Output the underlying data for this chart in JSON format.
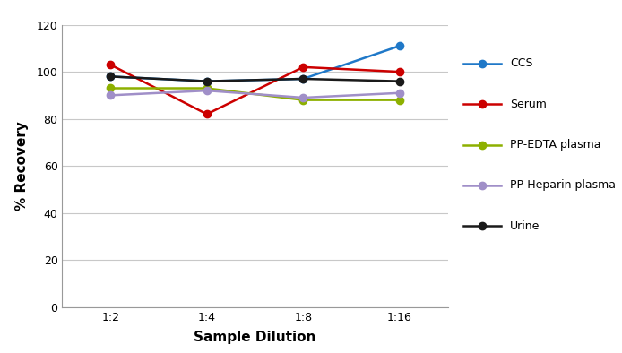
{
  "x_labels": [
    "1:2",
    "1:4",
    "1:8",
    "1:16"
  ],
  "x_positions": [
    1,
    2,
    3,
    4
  ],
  "series": [
    {
      "name": "CCS",
      "color": "#1f78c8",
      "values": [
        98,
        96,
        97,
        111
      ],
      "marker": "o",
      "linewidth": 1.8,
      "markersize": 6
    },
    {
      "name": "Serum",
      "color": "#cc0000",
      "values": [
        103,
        82,
        102,
        100
      ],
      "marker": "o",
      "linewidth": 1.8,
      "markersize": 6
    },
    {
      "name": "PP-EDTA plasma",
      "color": "#8db000",
      "values": [
        93,
        93,
        88,
        88
      ],
      "marker": "o",
      "linewidth": 1.8,
      "markersize": 6
    },
    {
      "name": "PP-Heparin plasma",
      "color": "#a08fc8",
      "values": [
        90,
        92,
        89,
        91
      ],
      "marker": "o",
      "linewidth": 1.8,
      "markersize": 6
    },
    {
      "name": "Urine",
      "color": "#1a1a1a",
      "values": [
        98,
        96,
        97,
        96
      ],
      "marker": "o",
      "linewidth": 1.8,
      "markersize": 6
    }
  ],
  "xlabel": "Sample Dilution",
  "ylabel": "% Recovery",
  "ylim": [
    0,
    120
  ],
  "yticks": [
    0,
    20,
    40,
    60,
    80,
    100,
    120
  ],
  "grid_color": "#c8c8c8",
  "background_color": "#ffffff",
  "plot_bg_color": "#ffffff",
  "legend_fontsize": 9,
  "axis_label_fontsize": 11,
  "tick_fontsize": 9,
  "fig_width": 6.94,
  "fig_height": 3.94,
  "dpi": 100
}
